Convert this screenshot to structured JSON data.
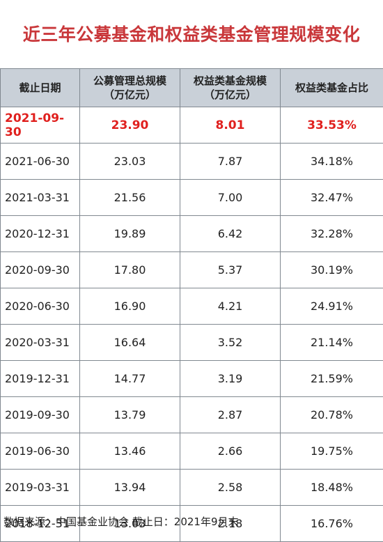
{
  "title": "近三年公募基金和权益类基金管理规模变化",
  "header": {
    "col1": "截止日期",
    "col2_line1": "公募管理总规模",
    "col2_line2": "（万亿元）",
    "col3_line1": "权益类基金规模",
    "col3_line2": "（万亿元）",
    "col4": "权益类基金占比"
  },
  "rows": [
    {
      "date": "2021-09-30",
      "total": "23.90",
      "equity": "8.01",
      "ratio": "33.53%"
    },
    {
      "date": "2021-06-30",
      "total": "23.03",
      "equity": "7.87",
      "ratio": "34.18%"
    },
    {
      "date": "2021-03-31",
      "total": "21.56",
      "equity": "7.00",
      "ratio": "32.47%"
    },
    {
      "date": "2020-12-31",
      "total": "19.89",
      "equity": "6.42",
      "ratio": "32.28%"
    },
    {
      "date": "2020-09-30",
      "total": "17.80",
      "equity": "5.37",
      "ratio": "30.19%"
    },
    {
      "date": "2020-06-30",
      "total": "16.90",
      "equity": "4.21",
      "ratio": "24.91%"
    },
    {
      "date": "2020-03-31",
      "total": "16.64",
      "equity": "3.52",
      "ratio": "21.14%"
    },
    {
      "date": "2019-12-31",
      "total": "14.77",
      "equity": "3.19",
      "ratio": "21.59%"
    },
    {
      "date": "2019-09-30",
      "total": "13.79",
      "equity": "2.87",
      "ratio": "20.78%"
    },
    {
      "date": "2019-06-30",
      "total": "13.46",
      "equity": "2.66",
      "ratio": "19.75%"
    },
    {
      "date": "2019-03-31",
      "total": "13.94",
      "equity": "2.58",
      "ratio": "18.48%"
    },
    {
      "date": "2018-12-31",
      "total": "13.03",
      "equity": "2.18",
      "ratio": "16.76%"
    }
  ],
  "footer": "数据来源：中国基金业协会    截止日：2021年9月末",
  "colors": {
    "title": "#c9373a",
    "highlight": "#e0201e",
    "header_bg": "#c9d0d8"
  }
}
